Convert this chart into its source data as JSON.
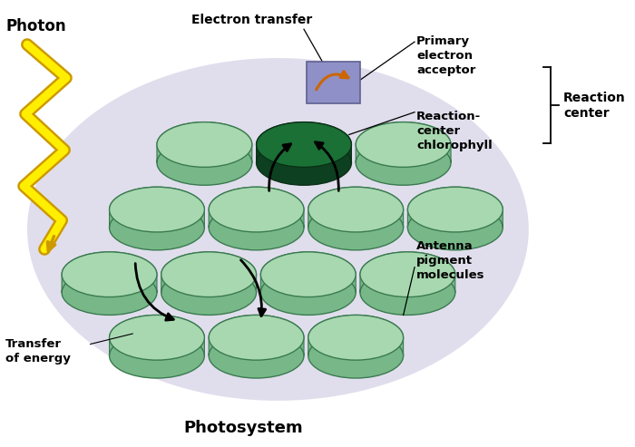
{
  "title": "Photosystem",
  "bg_color": "#ffffff",
  "glow_color": "#ccc8e0",
  "disk_top_color": "#a8d8b0",
  "disk_side_color": "#78b888",
  "disk_edge_color": "#3a7a50",
  "reaction_disk_top": "#1a7035",
  "reaction_disk_side": "#0d4020",
  "reaction_disk_edge": "#0a3018",
  "box_fill": "#9090c8",
  "box_edge": "#606090",
  "arrow_electron_color": "#cc6600",
  "arrow_energy_color": "#111111",
  "photon_yellow": "#ffee00",
  "photon_gold": "#cc9900",
  "label_photon": "Photon",
  "label_transfer": "Transfer\nof energy",
  "label_electron_transfer": "Electron transfer",
  "label_primary": "Primary\nelectron\nacceptor",
  "label_reaction_chlorophyll": "Reaction-\ncenter\nchlorophyll",
  "label_reaction_center": "Reaction\ncenter",
  "label_antenna": "Antenna\npigment\nmolecules",
  "figsize": [
    7.0,
    4.93
  ],
  "dpi": 100
}
